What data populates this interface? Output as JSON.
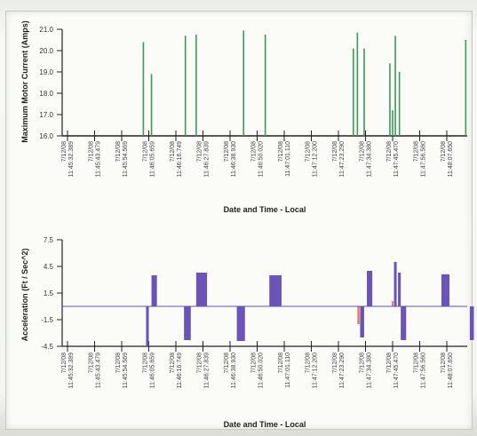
{
  "chart_data": [
    {
      "type": "bar",
      "title": "",
      "xlabel": "Date and Time - Local",
      "ylabel": "Maximum Motor Current (Amps)",
      "ylim": [
        16.0,
        21.0
      ],
      "y_ticks": [
        "21.0",
        "20.0",
        "19.0",
        "18.0",
        "17.0",
        "16.0"
      ],
      "x_tick_labels": [
        [
          "7/12/08",
          "11:45:32.389"
        ],
        [
          "7/12/08",
          "11:45:43.479"
        ],
        [
          "7/12/08",
          "11:45:54.569"
        ],
        [
          "7/12/08",
          "11:46:05.659"
        ],
        [
          "7/12/08",
          "11:46:16.749"
        ],
        [
          "7/12/08",
          "11:46:27.839"
        ],
        [
          "7/12/08",
          "11:46:38.930"
        ],
        [
          "7/12/08",
          "11:46:50.020"
        ],
        [
          "7/12/08",
          "11:47:01.110"
        ],
        [
          "7/12/08",
          "11:47:12.200"
        ],
        [
          "7/12/08",
          "11:47:23.290"
        ],
        [
          "7/12/08",
          "11:47:34.380"
        ],
        [
          "7/12/08",
          "11:47:45.470"
        ],
        [
          "7/12/08",
          "11:47:56.560"
        ],
        [
          "7/12/08",
          "11:48:07.650"
        ]
      ],
      "series": [
        {
          "color": "#3c9a5a",
          "points": [
            {
              "x": 2.8,
              "y": 20.4
            },
            {
              "x": 3.1,
              "y": 18.9
            },
            {
              "x": 4.35,
              "y": 20.7
            },
            {
              "x": 4.75,
              "y": 20.75
            },
            {
              "x": 6.5,
              "y": 20.95
            },
            {
              "x": 7.3,
              "y": 20.75
            },
            {
              "x": 10.55,
              "y": 20.1
            },
            {
              "x": 10.7,
              "y": 20.85
            },
            {
              "x": 10.95,
              "y": 20.1
            },
            {
              "x": 11.9,
              "y": 19.4
            },
            {
              "x": 12.0,
              "y": 17.2
            },
            {
              "x": 12.1,
              "y": 20.7
            },
            {
              "x": 12.25,
              "y": 19.0
            },
            {
              "x": 14.7,
              "y": 20.5
            }
          ]
        }
      ]
    },
    {
      "type": "bar",
      "title": "",
      "xlabel": "Date and Time - Local",
      "ylabel": "Acceleration (Ft / Sec^2)",
      "ylim": [
        -4.5,
        7.5
      ],
      "y_ticks": [
        "7.5",
        "4.5",
        "1.5",
        "-1.5",
        "-4.5"
      ],
      "baseline": 0,
      "x_tick_labels": [
        [
          "7/12/08",
          "11:45:32.389"
        ],
        [
          "7/12/08",
          "11:45:43.479"
        ],
        [
          "7/12/08",
          "11:45:54.569"
        ],
        [
          "7/12/08",
          "11:46:05.659"
        ],
        [
          "7/12/08",
          "11:46:16.749"
        ],
        [
          "7/12/08",
          "11:46:27.839"
        ],
        [
          "7/12/08",
          "11:46:38.930"
        ],
        [
          "7/12/08",
          "11:46:50.020"
        ],
        [
          "7/12/08",
          "11:47:01.110"
        ],
        [
          "7/12/08",
          "11:47:12.200"
        ],
        [
          "7/12/08",
          "11:47:23.290"
        ],
        [
          "7/12/08",
          "11:47:34.380"
        ],
        [
          "7/12/08",
          "11:47:45.470"
        ],
        [
          "7/12/08",
          "11:47:56.560"
        ],
        [
          "7/12/08",
          "11:48:07.650"
        ]
      ],
      "series": [
        {
          "color": "#6a54b8",
          "bars": [
            {
              "x0": 2.9,
              "x1": 3.0,
              "y": -4.5
            },
            {
              "x0": 3.1,
              "x1": 3.3,
              "y": 3.5
            },
            {
              "x0": 4.3,
              "x1": 4.55,
              "y": -3.8
            },
            {
              "x0": 4.75,
              "x1": 5.15,
              "y": 3.8
            },
            {
              "x0": 6.25,
              "x1": 6.55,
              "y": -3.9
            },
            {
              "x0": 7.45,
              "x1": 7.9,
              "y": 3.5
            },
            {
              "x0": 10.8,
              "x1": 10.95,
              "y": -3.5
            },
            {
              "x0": 11.05,
              "x1": 11.25,
              "y": 4.0
            },
            {
              "x0": 12.05,
              "x1": 12.15,
              "y": 5.0
            },
            {
              "x0": 12.2,
              "x1": 12.3,
              "y": 3.8
            },
            {
              "x0": 12.3,
              "x1": 12.5,
              "y": -3.8
            },
            {
              "x0": 13.8,
              "x1": 14.1,
              "y": 3.6
            },
            {
              "x0": 14.85,
              "x1": 15.0,
              "y": -3.8
            }
          ]
        },
        {
          "color": "#e07a5a",
          "bars": [
            {
              "x0": 10.7,
              "x1": 10.78,
              "y": -2.0
            },
            {
              "x0": 11.97,
              "x1": 12.03,
              "y": 0.6
            }
          ]
        }
      ]
    }
  ]
}
